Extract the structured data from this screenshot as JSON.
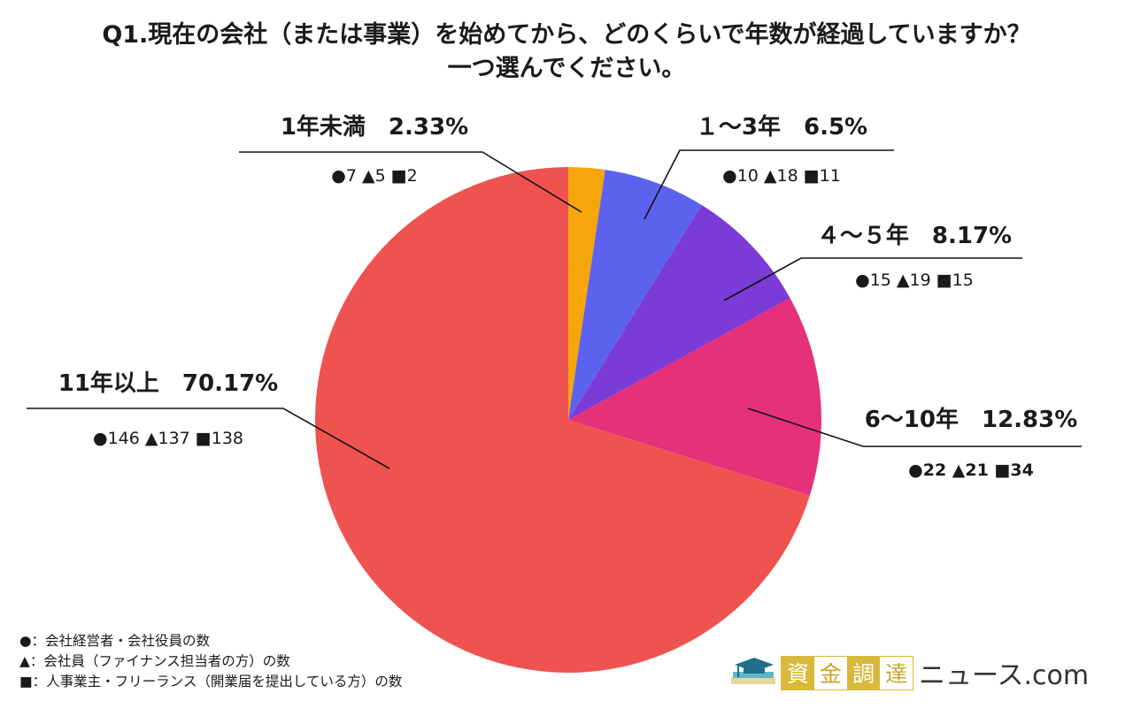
{
  "title": {
    "line1": "Q1.現在の会社（または事業）を始めてから、どのくらいで年数が経過していますか？",
    "line2": "一つ選んでください。"
  },
  "chart_data": {
    "type": "pie",
    "start": "top",
    "direction": "clockwise",
    "slices": [
      {
        "label": "1年未満",
        "percent_text": "2.33%",
        "value": 2.33,
        "color": "#F5A60A",
        "counts": "●7 ▲5 ■2"
      },
      {
        "label": "１～3年",
        "percent_text": "6.5%",
        "value": 6.5,
        "color": "#5B63EE",
        "counts": "●10 ▲18 ■11"
      },
      {
        "label": "４～５年",
        "percent_text": "8.17%",
        "value": 8.17,
        "color": "#7B3BD6",
        "counts": "●15 ▲19 ■15"
      },
      {
        "label": "6～10年",
        "percent_text": "12.83%",
        "value": 12.83,
        "color": "#E5307A",
        "counts": "●22 ▲21 ■34"
      },
      {
        "label": "11年以上",
        "percent_text": "70.17%",
        "value": 70.17,
        "color": "#EE5350",
        "counts": "●146 ▲137 ■138"
      }
    ]
  },
  "legend": [
    "●：会社経営者・会社役員の数",
    "▲：会社員（ファイナンス担当者の方）の数",
    "■：人事業主・フリーランス（開業届を提出している方）の数"
  ],
  "logo": {
    "kanji": [
      "資",
      "金",
      "調",
      "達"
    ],
    "text": "ニュース.com",
    "icon": "graduation-cap-books-icon",
    "color": "#D9B93A"
  }
}
